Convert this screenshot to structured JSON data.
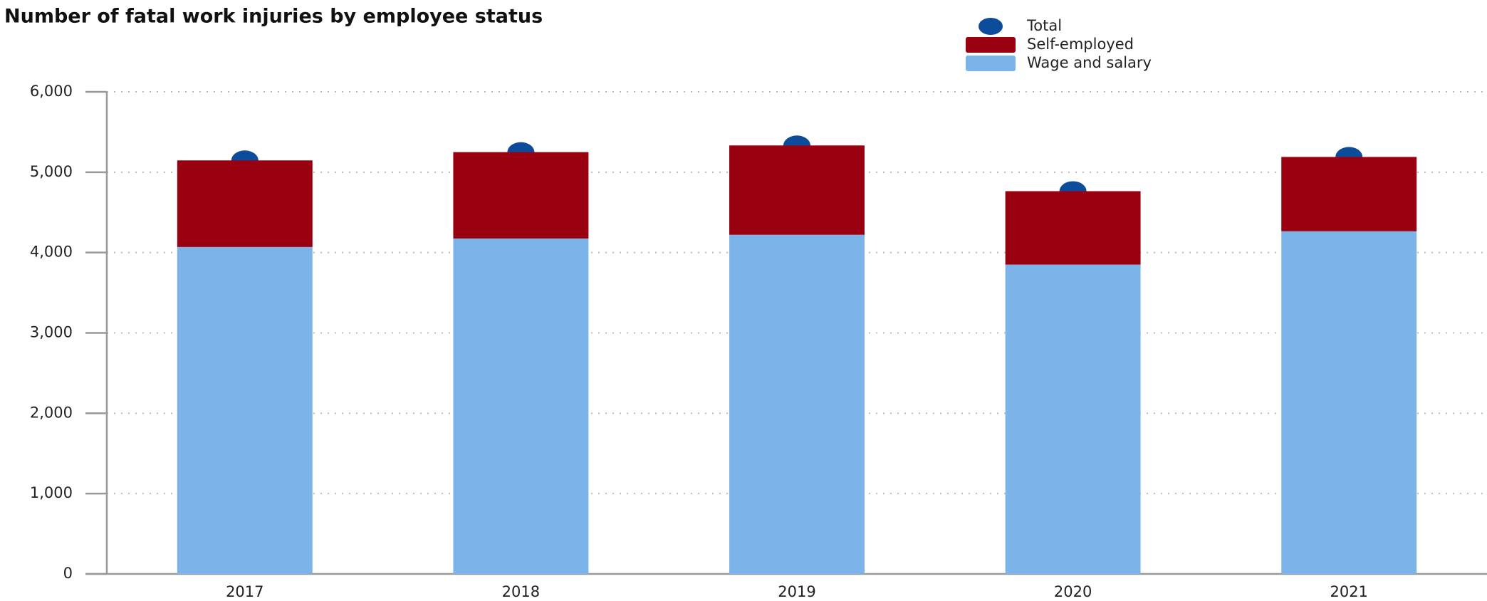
{
  "chart_data": {
    "type": "stacked_bar_with_points",
    "title": "Number of fatal work injuries by employee status",
    "categories": [
      "2017",
      "2018",
      "2019",
      "2020",
      "2021"
    ],
    "series": [
      {
        "name": "Wage and salary",
        "color": "#7cb4ea",
        "values": [
          4069,
          4175,
          4221,
          3850,
          4265
        ]
      },
      {
        "name": "Self-employed",
        "color": "#990010",
        "values": [
          1078,
          1075,
          1112,
          914,
          925
        ]
      },
      {
        "name": "Total",
        "color": "#0d4c9b",
        "type": "point",
        "values": [
          5147,
          5250,
          5333,
          4764,
          5190
        ]
      }
    ],
    "ylim": [
      0,
      6000
    ],
    "yticks": [
      0,
      {
        "value": 1000,
        "label": "1,000"
      },
      {
        "value": 2000,
        "label": "2,000"
      },
      {
        "value": 3000,
        "label": "3,000"
      },
      {
        "value": 4000,
        "label": "4,000"
      },
      {
        "value": 5000,
        "label": "5,000"
      },
      {
        "value": 6000,
        "label": "6,000"
      }
    ],
    "grid": true,
    "legend": "top-right"
  }
}
